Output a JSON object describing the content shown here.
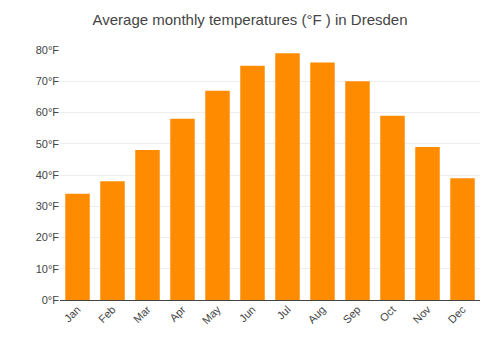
{
  "chart_data": {
    "type": "bar",
    "title": "Average monthly temperatures (°F ) in Dresden",
    "categories": [
      "Jan",
      "Feb",
      "Mar",
      "Apr",
      "May",
      "Jun",
      "Jul",
      "Aug",
      "Sep",
      "Oct",
      "Nov",
      "Dec"
    ],
    "values": [
      34,
      38,
      48,
      58,
      67,
      75,
      79,
      76,
      70,
      59,
      49,
      39
    ],
    "color": "#FF8C00",
    "ylim": [
      0,
      80
    ],
    "yticks": [
      {
        "value": 0,
        "label": "0°F"
      },
      {
        "value": 10,
        "label": "10°F"
      },
      {
        "value": 20,
        "label": "20°F"
      },
      {
        "value": 30,
        "label": "30°F"
      },
      {
        "value": 40,
        "label": "40°F"
      },
      {
        "value": 50,
        "label": "50°F"
      },
      {
        "value": 60,
        "label": "60°F"
      },
      {
        "value": 70,
        "label": "70°F"
      },
      {
        "value": 80,
        "label": "80°F"
      }
    ],
    "grid": true
  }
}
